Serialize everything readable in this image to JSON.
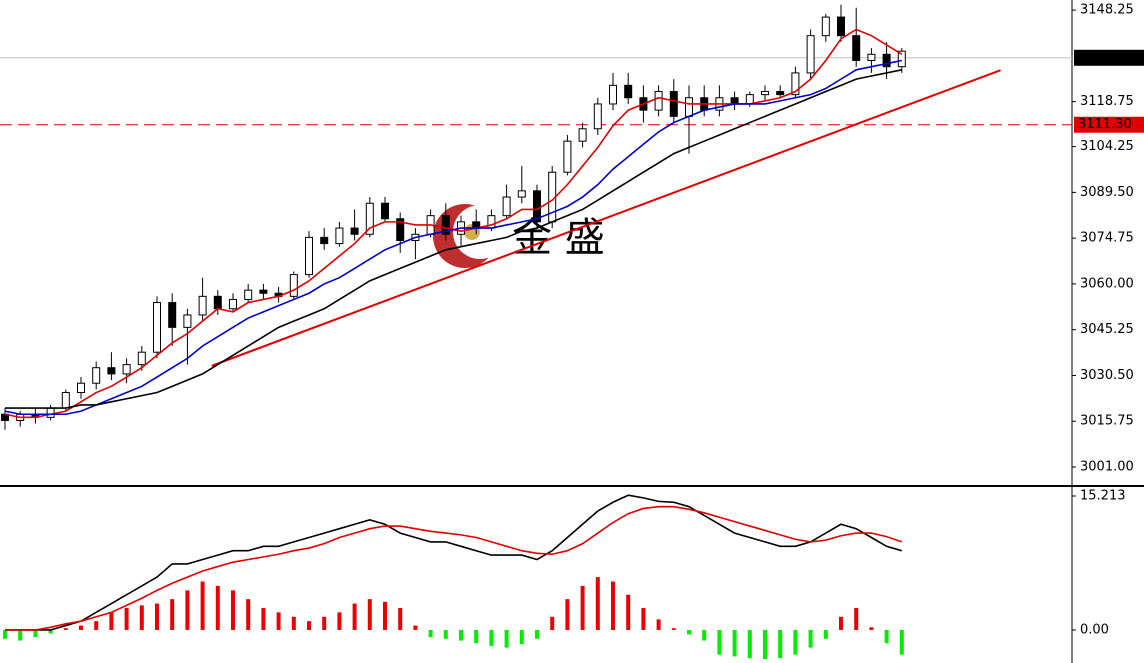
{
  "chart_data": [
    {
      "type": "candlestick",
      "up_color": "#ffffff",
      "down_color": "#000000",
      "open": [
        3018,
        3016,
        3018,
        3017,
        3020,
        3025,
        3028,
        3033,
        3031,
        3034,
        3038,
        3054,
        3046,
        3050,
        3056,
        3052,
        3055,
        3058,
        3057,
        3056,
        3063,
        3075,
        3073,
        3078,
        3076,
        3086,
        3081,
        3074,
        3076,
        3082,
        3076,
        3080,
        3078,
        3082,
        3088,
        3090,
        3080,
        3096,
        3106,
        3110,
        3118,
        3124,
        3120,
        3116,
        3122,
        3114,
        3120,
        3116,
        3120,
        3118,
        3121,
        3122,
        3121,
        3128,
        3140,
        3146,
        3140,
        3132,
        3134,
        3130
      ],
      "high": [
        3020,
        3019,
        3020,
        3021,
        3026,
        3030,
        3035,
        3038,
        3036,
        3040,
        3056,
        3057,
        3052,
        3062,
        3058,
        3057,
        3060,
        3060,
        3059,
        3064,
        3077,
        3078,
        3080,
        3084,
        3088,
        3088,
        3083,
        3078,
        3084,
        3086,
        3082,
        3084,
        3084,
        3092,
        3098,
        3092,
        3098,
        3108,
        3112,
        3120,
        3128,
        3128,
        3124,
        3124,
        3126,
        3124,
        3124,
        3124,
        3122,
        3122,
        3124,
        3124,
        3130,
        3142,
        3147,
        3150,
        3149,
        3136,
        3138,
        3136
      ],
      "low": [
        3013,
        3014,
        3015,
        3016,
        3019,
        3023,
        3026,
        3029,
        3028,
        3032,
        3036,
        3040,
        3034,
        3048,
        3050,
        3051,
        3054,
        3055,
        3054,
        3055,
        3062,
        3071,
        3072,
        3074,
        3075,
        3080,
        3070,
        3068,
        3075,
        3074,
        3072,
        3076,
        3077,
        3081,
        3086,
        3078,
        3078,
        3095,
        3104,
        3108,
        3116,
        3118,
        3112,
        3114,
        3112,
        3102,
        3114,
        3114,
        3116,
        3117,
        3119,
        3120,
        3120,
        3126,
        3138,
        3138,
        3130,
        3128,
        3126,
        3128
      ],
      "close": [
        3016,
        3018,
        3017,
        3020,
        3025,
        3028,
        3033,
        3031,
        3034,
        3038,
        3054,
        3046,
        3050,
        3056,
        3052,
        3055,
        3058,
        3057,
        3056,
        3063,
        3075,
        3073,
        3078,
        3076,
        3086,
        3081,
        3074,
        3076,
        3082,
        3076,
        3080,
        3078,
        3082,
        3088,
        3090,
        3080,
        3096,
        3106,
        3110,
        3118,
        3124,
        3120,
        3116,
        3122,
        3114,
        3120,
        3116,
        3120,
        3118,
        3121,
        3122,
        3121,
        3128,
        3140,
        3146,
        3140,
        3132,
        3134,
        3130,
        3135
      ],
      "series": [
        {
          "color": "#e00000",
          "values": [
            3018,
            3017,
            3017,
            3018,
            3019,
            3022,
            3025,
            3027,
            3030,
            3033,
            3037,
            3041,
            3044,
            3048,
            3052,
            3051,
            3054,
            3055,
            3056,
            3058,
            3061,
            3065,
            3069,
            3073,
            3078,
            3080,
            3080,
            3079,
            3079,
            3078,
            3077,
            3078,
            3079,
            3081,
            3084,
            3084,
            3087,
            3092,
            3098,
            3104,
            3111,
            3116,
            3118,
            3120,
            3119,
            3118,
            3118,
            3118,
            3118,
            3118,
            3119,
            3120,
            3122,
            3126,
            3132,
            3139,
            3142,
            3140,
            3137,
            3134
          ]
        },
        {
          "color": "#0000cc",
          "values": [
            3019,
            3018,
            3018,
            3018,
            3018,
            3019,
            3021,
            3023,
            3025,
            3027,
            3030,
            3033,
            3036,
            3040,
            3043,
            3046,
            3049,
            3051,
            3053,
            3055,
            3057,
            3060,
            3062,
            3065,
            3068,
            3071,
            3073,
            3075,
            3076,
            3077,
            3078,
            3078,
            3078,
            3079,
            3080,
            3081,
            3083,
            3085,
            3088,
            3092,
            3097,
            3101,
            3105,
            3109,
            3112,
            3114,
            3116,
            3117,
            3118,
            3118,
            3118,
            3119,
            3120,
            3121,
            3123,
            3126,
            3129,
            3130,
            3131,
            3132
          ]
        },
        {
          "color": "#000000",
          "values": [
            3020,
            3020,
            3020,
            3020,
            3020,
            3021,
            3021,
            3022,
            3023,
            3024,
            3025,
            3027,
            3029,
            3031,
            3034,
            3037,
            3040,
            3043,
            3046,
            3048,
            3050,
            3052,
            3055,
            3058,
            3061,
            3063,
            3065,
            3067,
            3069,
            3071,
            3072,
            3073,
            3074,
            3075,
            3077,
            3078,
            3080,
            3082,
            3084,
            3087,
            3090,
            3093,
            3096,
            3099,
            3102,
            3104,
            3106,
            3108,
            3110,
            3112,
            3114,
            3116,
            3118,
            3120,
            3122,
            3124,
            3126,
            3127,
            3128,
            3129
          ]
        }
      ],
      "trendline": {
        "color": "#e00000",
        "x": [
          13.6,
          65.5
        ],
        "y": [
          3033.6,
          3128.9
        ]
      },
      "price_lines": [
        {
          "value": 3132.88,
          "color": "#c0c0c0",
          "label_bg": "#000000",
          "dashed": false
        },
        {
          "value": {
            "value": 3111.3,
            "label": "3111.30"
          },
          "color": "#e00000",
          "label_bg": "#e00000",
          "dashed": true
        }
      ],
      "watermark": "金 盛",
      "ylim": [
        2995.2,
        3151.5
      ],
      "yticks": [
        3148.25,
        {
          "value": 3118.75,
          "label": "3118.75"
        },
        3104.25,
        {
          "value": 3089.5,
          "label": "3089.50"
        },
        3074.75,
        {
          "value": 3060,
          "label": "3060.00"
        },
        3045.25,
        {
          "value": 3030.5,
          "label": "3030.50"
        },
        3015.75,
        {
          "value": 3001,
          "label": "3001.00"
        }
      ]
    },
    {
      "type": "macd",
      "series": [
        {
          "color": "#000000",
          "values": [
            0,
            0,
            0,
            0,
            0.5,
            1,
            2,
            3,
            4,
            5,
            6,
            7.5,
            7.5,
            8,
            8.5,
            9,
            9,
            9.5,
            9.5,
            10,
            10.5,
            11,
            11.5,
            12,
            12.5,
            12,
            11,
            10.5,
            10,
            10,
            9.5,
            9,
            8.5,
            8.5,
            8.5,
            8,
            9,
            10.5,
            12,
            13.5,
            14.5,
            15.3,
            15,
            14.6,
            14.5,
            14,
            13,
            12,
            11,
            10.5,
            10,
            9.5,
            9.5,
            10,
            11,
            12,
            11.5,
            10.5,
            9.5,
            9
          ]
        },
        {
          "color": "#e00000",
          "values": [
            0,
            0,
            0,
            0.3,
            0.7,
            1,
            1.5,
            2,
            2.8,
            3.6,
            4.5,
            5.3,
            6,
            6.7,
            7.2,
            7.7,
            8,
            8.3,
            8.6,
            9,
            9.3,
            9.8,
            10.5,
            11,
            11.5,
            11.8,
            11.8,
            11.5,
            11.2,
            11,
            10.8,
            10.5,
            10,
            9.5,
            9,
            8.7,
            8.6,
            9,
            9.8,
            11,
            12.2,
            13.2,
            13.8,
            14,
            14,
            13.7,
            13.3,
            12.8,
            12.3,
            11.8,
            11.3,
            10.8,
            10.3,
            10,
            10.2,
            10.7,
            11,
            11,
            10.6,
            10
          ]
        }
      ],
      "histogram": {
        "up_color": "#ee0000",
        "down_color": "#00ee00",
        "values": [
          -1,
          -1.2,
          -0.8,
          -0.4,
          0.2,
          0.5,
          1,
          2,
          2.5,
          2.8,
          3,
          3.5,
          4.5,
          5.5,
          5,
          4.5,
          3.5,
          2.5,
          2,
          1.5,
          1,
          1.5,
          2,
          3,
          3.5,
          3.2,
          2.5,
          0.5,
          -0.8,
          -1,
          -1.2,
          -1.5,
          -1.8,
          -2,
          -1.6,
          -1,
          1.5,
          3.5,
          5,
          6,
          5.5,
          4,
          2.5,
          1.2,
          0.2,
          -0.5,
          -1.2,
          -2.8,
          -3,
          -3.2,
          -3.3,
          -3.2,
          -2.8,
          -2,
          -1,
          1.5,
          2.5,
          0.3,
          -1.5,
          -2.8
        ]
      },
      "ylim": [
        -3.75,
        16.12
      ],
      "yticks": [
        {
          "value": 15.213,
          "label": "15.213"
        },
        {
          "value": 0,
          "label": "0.00"
        }
      ]
    }
  ]
}
